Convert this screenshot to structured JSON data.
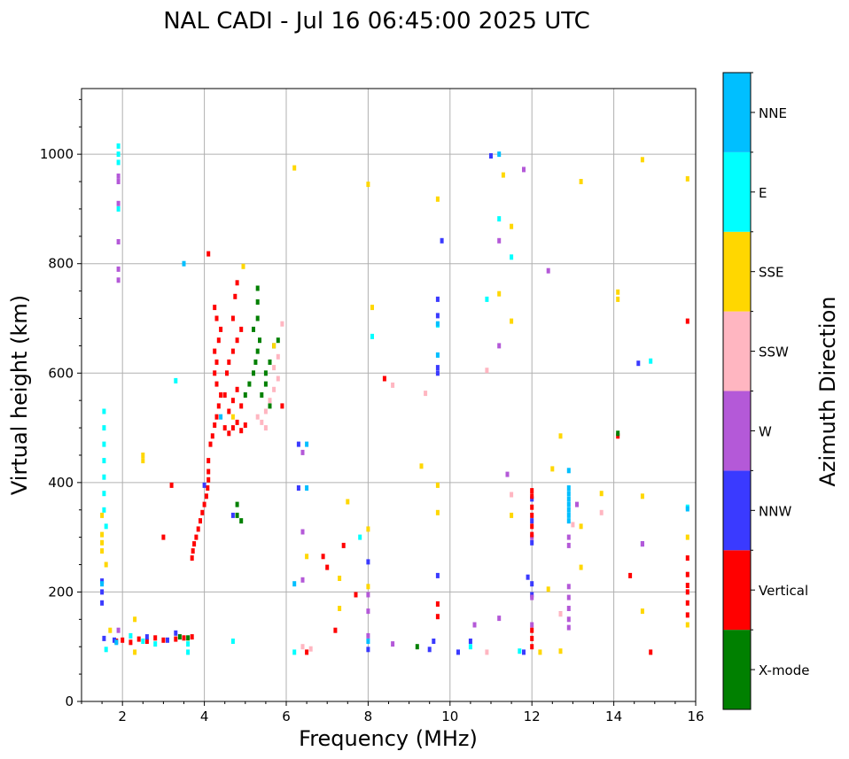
{
  "chart_data": {
    "type": "scatter",
    "title": "NAL CADI - Jul 16 06:45:00 2025 UTC",
    "xlabel": "Frequency (MHz)",
    "ylabel": "Virtual height (km)",
    "xlim": [
      1,
      16
    ],
    "ylim": [
      0,
      1120
    ],
    "xticks": [
      2,
      4,
      6,
      8,
      10,
      12,
      14,
      16
    ],
    "yticks": [
      0,
      200,
      400,
      600,
      800,
      1000
    ],
    "xtick_labels": [
      "2",
      "4",
      "6",
      "8",
      "10",
      "12",
      "14",
      "16"
    ],
    "ytick_labels": [
      "0",
      "200",
      "400",
      "600",
      "800",
      "1000"
    ],
    "grid": true,
    "colorbar": {
      "label": "Azimuth Direction",
      "categories": [
        {
          "name": "X-mode",
          "color": "#008000"
        },
        {
          "name": "Vertical",
          "color": "#ff0000"
        },
        {
          "name": "NNW",
          "color": "#3a3aff"
        },
        {
          "name": "W",
          "color": "#b459d8"
        },
        {
          "name": "SSW",
          "color": "#ffb6c1"
        },
        {
          "name": "SSE",
          "color": "#ffd700"
        },
        {
          "name": "E",
          "color": "#00ffff"
        },
        {
          "name": "NNE",
          "color": "#00bfff"
        }
      ]
    },
    "series": [
      {
        "name": "Vertical",
        "points": [
          [
            1.85,
            110
          ],
          [
            2.0,
            112
          ],
          [
            2.2,
            108
          ],
          [
            2.4,
            114
          ],
          [
            2.6,
            110
          ],
          [
            2.8,
            116
          ],
          [
            3.0,
            112
          ],
          [
            3.3,
            114
          ],
          [
            3.5,
            116
          ],
          [
            3.7,
            118
          ],
          [
            3.7,
            262
          ],
          [
            3.72,
            275
          ],
          [
            3.75,
            288
          ],
          [
            3.8,
            300
          ],
          [
            3.85,
            315
          ],
          [
            3.9,
            330
          ],
          [
            3.95,
            345
          ],
          [
            4.0,
            360
          ],
          [
            4.05,
            375
          ],
          [
            4.08,
            390
          ],
          [
            4.1,
            405
          ],
          [
            4.1,
            420
          ],
          [
            4.1,
            440
          ],
          [
            4.15,
            470
          ],
          [
            4.2,
            485
          ],
          [
            4.25,
            505
          ],
          [
            4.3,
            520
          ],
          [
            4.35,
            540
          ],
          [
            4.4,
            560
          ],
          [
            4.3,
            580
          ],
          [
            4.25,
            600
          ],
          [
            4.3,
            620
          ],
          [
            4.25,
            640
          ],
          [
            4.35,
            660
          ],
          [
            4.4,
            680
          ],
          [
            4.3,
            700
          ],
          [
            4.25,
            720
          ],
          [
            4.5,
            500
          ],
          [
            4.6,
            490
          ],
          [
            4.7,
            500
          ],
          [
            4.8,
            510
          ],
          [
            4.9,
            495
          ],
          [
            5.0,
            505
          ],
          [
            4.6,
            530
          ],
          [
            4.7,
            550
          ],
          [
            4.8,
            570
          ],
          [
            4.9,
            540
          ],
          [
            4.5,
            560
          ],
          [
            4.55,
            600
          ],
          [
            4.6,
            620
          ],
          [
            4.7,
            640
          ],
          [
            4.8,
            660
          ],
          [
            4.9,
            680
          ],
          [
            4.7,
            700
          ],
          [
            4.75,
            740
          ],
          [
            4.8,
            765
          ],
          [
            4.1,
            818
          ],
          [
            3.2,
            395
          ],
          [
            3.0,
            300
          ],
          [
            5.9,
            540
          ],
          [
            6.5,
            90
          ],
          [
            6.9,
            265
          ],
          [
            7.0,
            245
          ],
          [
            7.2,
            130
          ],
          [
            7.4,
            285
          ],
          [
            7.7,
            195
          ],
          [
            8.4,
            590
          ],
          [
            9.7,
            178
          ],
          [
            9.7,
            155
          ],
          [
            12.0,
            100
          ],
          [
            14.1,
            485
          ],
          [
            14.4,
            230
          ],
          [
            14.9,
            90
          ],
          [
            15.8,
            695
          ],
          [
            15.8,
            262
          ],
          [
            15.8,
            232
          ],
          [
            15.8,
            212
          ],
          [
            15.8,
            200
          ],
          [
            15.8,
            180
          ],
          [
            15.8,
            158
          ]
        ]
      },
      {
        "name": "X-mode",
        "points": [
          [
            3.4,
            118
          ],
          [
            3.6,
            116
          ],
          [
            5.0,
            560
          ],
          [
            5.1,
            580
          ],
          [
            5.2,
            600
          ],
          [
            5.25,
            620
          ],
          [
            5.3,
            640
          ],
          [
            5.35,
            660
          ],
          [
            5.2,
            680
          ],
          [
            5.3,
            700
          ],
          [
            5.3,
            730
          ],
          [
            5.3,
            755
          ],
          [
            5.5,
            600
          ],
          [
            5.6,
            620
          ],
          [
            5.4,
            560
          ],
          [
            5.5,
            580
          ],
          [
            5.7,
            650
          ],
          [
            5.8,
            660
          ],
          [
            5.6,
            540
          ],
          [
            4.9,
            330
          ],
          [
            4.8,
            340
          ],
          [
            4.8,
            360
          ],
          [
            14.1,
            490
          ],
          [
            9.2,
            100
          ]
        ]
      },
      {
        "name": "NNW",
        "points": [
          [
            1.5,
            180
          ],
          [
            1.5,
            200
          ],
          [
            1.5,
            220
          ],
          [
            1.55,
            115
          ],
          [
            1.8,
            112
          ],
          [
            2.6,
            118
          ],
          [
            3.1,
            112
          ],
          [
            3.3,
            125
          ],
          [
            4.0,
            395
          ],
          [
            4.7,
            340
          ],
          [
            6.3,
            470
          ],
          [
            6.3,
            390
          ],
          [
            8.0,
            95
          ],
          [
            8.0,
            255
          ],
          [
            9.5,
            95
          ],
          [
            9.6,
            110
          ],
          [
            9.7,
            230
          ],
          [
            9.7,
            600
          ],
          [
            9.7,
            610
          ],
          [
            9.7,
            735
          ],
          [
            9.7,
            705
          ],
          [
            9.8,
            842
          ],
          [
            10.2,
            90
          ],
          [
            10.5,
            110
          ],
          [
            11.0,
            997
          ],
          [
            11.8,
            90
          ],
          [
            11.9,
            227
          ],
          [
            12.0,
            370
          ],
          [
            12.0,
            330
          ],
          [
            12.0,
            290
          ],
          [
            12.0,
            215
          ],
          [
            12.0,
            195
          ],
          [
            14.6,
            618
          ],
          [
            14.7,
            288
          ]
        ]
      },
      {
        "name": "W",
        "points": [
          [
            1.9,
            840
          ],
          [
            1.9,
            910
          ],
          [
            1.9,
            960
          ],
          [
            1.9,
            950
          ],
          [
            1.9,
            790
          ],
          [
            1.9,
            770
          ],
          [
            1.9,
            130
          ],
          [
            6.4,
            455
          ],
          [
            6.4,
            310
          ],
          [
            6.4,
            222
          ],
          [
            8.0,
            195
          ],
          [
            8.0,
            165
          ],
          [
            8.0,
            120
          ],
          [
            8.6,
            105
          ],
          [
            10.6,
            140
          ],
          [
            11.2,
            842
          ],
          [
            11.2,
            650
          ],
          [
            11.2,
            152
          ],
          [
            11.4,
            415
          ],
          [
            11.8,
            972
          ],
          [
            12.0,
            300
          ],
          [
            12.0,
            190
          ],
          [
            12.0,
            140
          ],
          [
            12.4,
            787
          ],
          [
            12.7,
            160
          ],
          [
            12.9,
            300
          ],
          [
            12.9,
            285
          ],
          [
            12.9,
            210
          ],
          [
            12.9,
            190
          ],
          [
            12.9,
            170
          ],
          [
            12.9,
            150
          ],
          [
            12.9,
            135
          ],
          [
            13.1,
            360
          ],
          [
            14.7,
            288
          ]
        ]
      },
      {
        "name": "SSW",
        "points": [
          [
            5.3,
            520
          ],
          [
            5.4,
            510
          ],
          [
            5.5,
            530
          ],
          [
            5.6,
            550
          ],
          [
            5.7,
            570
          ],
          [
            5.8,
            590
          ],
          [
            5.7,
            610
          ],
          [
            5.8,
            630
          ],
          [
            5.5,
            500
          ],
          [
            5.9,
            690
          ],
          [
            6.4,
            100
          ],
          [
            6.6,
            96
          ],
          [
            8.6,
            578
          ],
          [
            9.4,
            563
          ],
          [
            10.9,
            605
          ],
          [
            10.9,
            90
          ],
          [
            11.5,
            378
          ],
          [
            12.7,
            160
          ],
          [
            13.7,
            345
          ],
          [
            13.0,
            323
          ]
        ]
      },
      {
        "name": "SSE",
        "points": [
          [
            1.5,
            275
          ],
          [
            1.5,
            290
          ],
          [
            1.5,
            305
          ],
          [
            1.5,
            340
          ],
          [
            1.6,
            250
          ],
          [
            1.7,
            130
          ],
          [
            2.3,
            90
          ],
          [
            2.3,
            150
          ],
          [
            2.5,
            440
          ],
          [
            2.5,
            450
          ],
          [
            4.7,
            520
          ],
          [
            4.95,
            795
          ],
          [
            5.7,
            650
          ],
          [
            6.2,
            975
          ],
          [
            6.5,
            265
          ],
          [
            7.3,
            225
          ],
          [
            7.3,
            170
          ],
          [
            7.5,
            365
          ],
          [
            8.0,
            315
          ],
          [
            8.0,
            210
          ],
          [
            8.0,
            945
          ],
          [
            8.1,
            720
          ],
          [
            9.3,
            430
          ],
          [
            9.7,
            918
          ],
          [
            9.7,
            395
          ],
          [
            9.7,
            345
          ],
          [
            11.2,
            745
          ],
          [
            11.3,
            962
          ],
          [
            11.5,
            868
          ],
          [
            11.5,
            695
          ],
          [
            11.5,
            340
          ],
          [
            12.2,
            90
          ],
          [
            12.4,
            205
          ],
          [
            12.5,
            425
          ],
          [
            12.7,
            485
          ],
          [
            12.7,
            92
          ],
          [
            13.2,
            320
          ],
          [
            13.2,
            245
          ],
          [
            13.2,
            950
          ],
          [
            13.7,
            380
          ],
          [
            14.1,
            748
          ],
          [
            14.1,
            735
          ],
          [
            14.7,
            990
          ],
          [
            14.7,
            375
          ],
          [
            14.7,
            165
          ],
          [
            15.8,
            955
          ],
          [
            15.8,
            300
          ],
          [
            15.8,
            140
          ]
        ]
      },
      {
        "name": "E",
        "points": [
          [
            1.55,
            530
          ],
          [
            1.55,
            500
          ],
          [
            1.55,
            470
          ],
          [
            1.55,
            440
          ],
          [
            1.55,
            410
          ],
          [
            1.55,
            380
          ],
          [
            1.55,
            350
          ],
          [
            1.6,
            320
          ],
          [
            1.6,
            95
          ],
          [
            1.9,
            1015
          ],
          [
            1.9,
            1000
          ],
          [
            1.9,
            985
          ],
          [
            1.9,
            900
          ],
          [
            2.2,
            120
          ],
          [
            2.5,
            110
          ],
          [
            2.8,
            105
          ],
          [
            3.3,
            586
          ],
          [
            3.6,
            90
          ],
          [
            3.6,
            105
          ],
          [
            4.7,
            110
          ],
          [
            6.2,
            90
          ],
          [
            7.8,
            300
          ],
          [
            8.1,
            667
          ],
          [
            9.7,
            688
          ],
          [
            10.5,
            100
          ],
          [
            10.9,
            735
          ],
          [
            11.2,
            882
          ],
          [
            11.5,
            812
          ],
          [
            11.7,
            92
          ],
          [
            14.9,
            622
          ],
          [
            15.8,
            355
          ]
        ]
      },
      {
        "name": "NNE",
        "points": [
          [
            1.5,
            215
          ],
          [
            1.85,
            108
          ],
          [
            3.5,
            800
          ],
          [
            4.4,
            520
          ],
          [
            6.2,
            215
          ],
          [
            6.5,
            390
          ],
          [
            6.5,
            470
          ],
          [
            8.0,
            110
          ],
          [
            9.7,
            633
          ],
          [
            9.7,
            690
          ],
          [
            11.2,
            1000
          ],
          [
            12.9,
            390
          ],
          [
            12.9,
            380
          ],
          [
            12.9,
            370
          ],
          [
            12.9,
            360
          ],
          [
            12.9,
            350
          ],
          [
            12.9,
            340
          ],
          [
            12.9,
            330
          ],
          [
            12.9,
            422
          ],
          [
            15.8,
            352
          ]
        ]
      },
      {
        "name": "Vertical",
        "points": [
          [
            12.0,
            385
          ],
          [
            12.0,
            375
          ],
          [
            12.0,
            355
          ],
          [
            12.0,
            340
          ],
          [
            12.0,
            320
          ],
          [
            12.0,
            305
          ],
          [
            12.0,
            130
          ],
          [
            12.0,
            115
          ]
        ]
      }
    ]
  }
}
